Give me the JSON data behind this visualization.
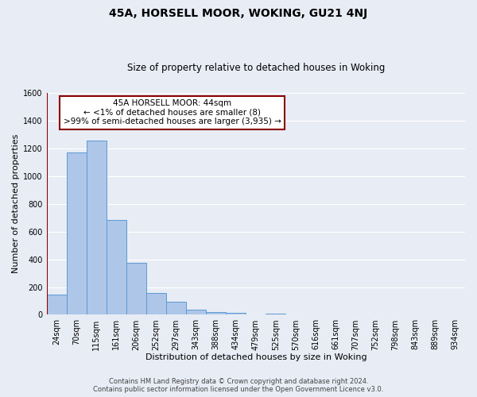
{
  "title": "45A, HORSELL MOOR, WOKING, GU21 4NJ",
  "subtitle": "Size of property relative to detached houses in Woking",
  "xlabel": "Distribution of detached houses by size in Woking",
  "ylabel": "Number of detached properties",
  "footer_line1": "Contains HM Land Registry data © Crown copyright and database right 2024.",
  "footer_line2": "Contains public sector information licensed under the Open Government Licence v3.0.",
  "bin_labels": [
    "24sqm",
    "70sqm",
    "115sqm",
    "161sqm",
    "206sqm",
    "252sqm",
    "297sqm",
    "343sqm",
    "388sqm",
    "434sqm",
    "479sqm",
    "525sqm",
    "570sqm",
    "616sqm",
    "661sqm",
    "707sqm",
    "752sqm",
    "798sqm",
    "843sqm",
    "889sqm",
    "934sqm"
  ],
  "bar_values": [
    148,
    1170,
    1255,
    685,
    375,
    160,
    93,
    38,
    22,
    12,
    0,
    10,
    0,
    0,
    0,
    0,
    0,
    0,
    0,
    0,
    0
  ],
  "bar_color": "#aec6e8",
  "bar_edge_color": "#5b9bd5",
  "annotation_line1": "45A HORSELL MOOR: 44sqm",
  "annotation_line2": "← <1% of detached houses are smaller (8)",
  "annotation_line3": ">99% of semi-detached houses are larger (3,935) →",
  "annotation_box_color": "white",
  "annotation_box_edge_color": "#8b0000",
  "ylim": [
    0,
    1600
  ],
  "yticks": [
    0,
    200,
    400,
    600,
    800,
    1000,
    1200,
    1400,
    1600
  ],
  "background_color": "#e8ecf5",
  "grid_color": "#ffffff",
  "title_fontsize": 10,
  "subtitle_fontsize": 8.5,
  "axis_label_fontsize": 8,
  "tick_fontsize": 7,
  "annotation_fontsize": 7.5,
  "footer_fontsize": 6
}
